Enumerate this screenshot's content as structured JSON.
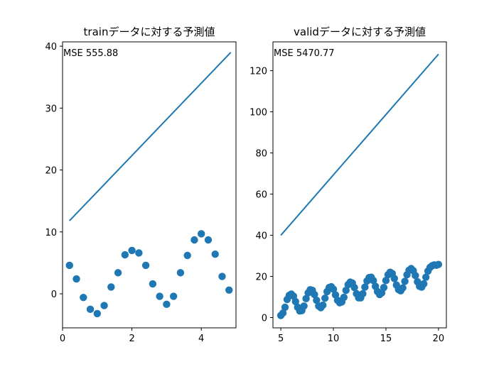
{
  "chart_data": [
    {
      "type": "line+scatter",
      "title": "trainデータに対する予測値",
      "annotation": "MSE 555.88",
      "xlim": [
        0,
        5
      ],
      "ylim": [
        -5.5,
        40.7
      ],
      "xticks": [
        0,
        2,
        4
      ],
      "yticks": [
        0,
        10,
        20,
        30,
        40
      ],
      "line_color": "#1f77b4",
      "line": {
        "x": [
          0.2,
          4.85
        ],
        "y": [
          11.8,
          39.0
        ]
      },
      "scatter_color": "#1f77b4",
      "scatter": {
        "x": [
          0.2,
          0.4,
          0.6,
          0.8,
          1.0,
          1.2,
          1.4,
          1.6,
          1.8,
          2.0,
          2.2,
          2.4,
          2.6,
          2.8,
          3.0,
          3.2,
          3.4,
          3.6,
          3.8,
          4.0,
          4.2,
          4.4,
          4.6,
          4.8
        ],
        "y": [
          4.6,
          2.4,
          -0.6,
          -2.5,
          -3.2,
          -1.9,
          1.1,
          3.4,
          6.3,
          7.0,
          6.6,
          4.6,
          1.6,
          -0.4,
          -1.7,
          -0.4,
          3.4,
          6.2,
          8.7,
          9.7,
          8.7,
          6.4,
          2.8,
          0.6
        ]
      }
    },
    {
      "type": "line+scatter",
      "title": "validデータに対する予測値",
      "annotation": "MSE 5470.77",
      "xlim": [
        4.25,
        20.75
      ],
      "ylim": [
        -5,
        134
      ],
      "xticks": [
        5,
        10,
        15,
        20
      ],
      "yticks": [
        0,
        20,
        40,
        60,
        80,
        100,
        120
      ],
      "line_color": "#1f77b4",
      "line": {
        "x": [
          5.0,
          20.0
        ],
        "y": [
          40.0,
          128.0
        ]
      },
      "scatter_color": "#1f77b4",
      "scatter": {
        "x": [
          5.0,
          5.2,
          5.4,
          5.6,
          5.8,
          6.0,
          6.2,
          6.4,
          6.6,
          6.8,
          7.0,
          7.2,
          7.4,
          7.6,
          7.8,
          8.0,
          8.2,
          8.4,
          8.6,
          8.8,
          9.0,
          9.2,
          9.4,
          9.6,
          9.8,
          10.0,
          10.2,
          10.4,
          10.6,
          10.8,
          11.0,
          11.2,
          11.4,
          11.6,
          11.8,
          12.0,
          12.2,
          12.4,
          12.6,
          12.8,
          13.0,
          13.2,
          13.4,
          13.6,
          13.8,
          14.0,
          14.2,
          14.4,
          14.6,
          14.8,
          15.0,
          15.2,
          15.4,
          15.6,
          15.8,
          16.0,
          16.2,
          16.4,
          16.6,
          16.8,
          17.0,
          17.2,
          17.4,
          17.6,
          17.8,
          18.0,
          18.2,
          18.4,
          18.6,
          18.8,
          19.0,
          19.2,
          19.4,
          19.6,
          19.8,
          20.0
        ],
        "y": [
          1.0,
          2.2,
          5.0,
          8.8,
          10.8,
          11.4,
          10.4,
          7.8,
          5.0,
          3.2,
          3.4,
          5.6,
          9.2,
          12.0,
          13.5,
          13.2,
          11.2,
          8.4,
          5.6,
          4.8,
          6.0,
          9.4,
          12.6,
          14.6,
          15.0,
          13.8,
          11.0,
          8.4,
          7.2,
          7.6,
          9.8,
          13.2,
          16.0,
          17.2,
          16.8,
          14.6,
          11.6,
          9.6,
          9.6,
          11.6,
          14.8,
          17.8,
          19.4,
          19.6,
          18.0,
          15.2,
          12.6,
          11.2,
          12.0,
          14.6,
          18.0,
          20.8,
          22.0,
          21.4,
          19.0,
          15.8,
          13.6,
          13.0,
          14.4,
          17.6,
          20.8,
          23.0,
          23.8,
          22.8,
          20.4,
          17.4,
          15.2,
          14.8,
          16.4,
          19.6,
          22.6,
          24.4,
          25.2,
          25.6,
          25.4,
          25.8
        ]
      }
    }
  ]
}
